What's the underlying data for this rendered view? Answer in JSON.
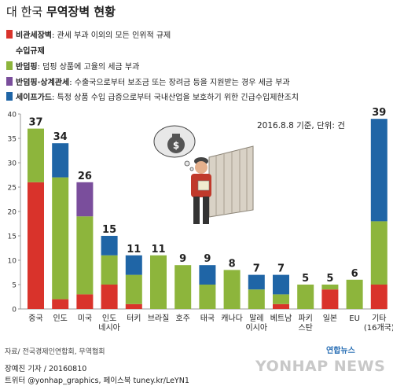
{
  "title_prefix": "대 한국 ",
  "title_main": "무역장벽 현황",
  "legend": [
    {
      "term": "비관세장벽",
      "desc": ": 관세 부과 이외의 모든 인위적 규제",
      "color": "#d9332b"
    },
    {
      "heading": "수입규제"
    },
    {
      "term": "반덤핑",
      "desc": ": 덤핑 상품에 고율의 세금 부과",
      "color": "#8db53c"
    },
    {
      "term": "반덤핑·상계관세",
      "desc": ": 수출국으로부터 보조금 또는 장려금 등을 지원받는 경우 세금 부과",
      "color": "#7a4e9c"
    },
    {
      "term": "세이프가드",
      "desc": ": 특정 상품 수입 급증으로부터 국내산업을 보호하기 위한 긴급수입제한조치",
      "color": "#1f65a6"
    }
  ],
  "note": "2016.8.8 기준, 단위: 건",
  "source": "자료/ 전국경제인연합회, 무역협회",
  "credit_line1": "장예진 기자 / 20160810",
  "credit_line2": "트위터 @yonhap_graphics, 페이스북 tuney.kr/LeYN1",
  "brand": "연합뉴스",
  "watermark": "YONHAP NEWS",
  "chart_data": {
    "type": "bar",
    "stacked": true,
    "categories": [
      "중국",
      "인도",
      "미국",
      "인도\n네시아",
      "터키",
      "브라질",
      "호주",
      "태국",
      "캐나다",
      "말레\n이시아",
      "베트남",
      "파키\n스탄",
      "일본",
      "EU",
      "기타\n(16개국)"
    ],
    "series": [
      {
        "name": "비관세장벽",
        "color": "#d9332b",
        "values": [
          26,
          2,
          3,
          5,
          1,
          0,
          0,
          0,
          0,
          0,
          1,
          0,
          4,
          0,
          5
        ]
      },
      {
        "name": "반덤핑",
        "color": "#8db53c",
        "values": [
          11,
          25,
          16,
          6,
          6,
          11,
          9,
          5,
          8,
          4,
          2,
          5,
          1,
          6,
          13
        ]
      },
      {
        "name": "반덤핑·상계관세",
        "color": "#7a4e9c",
        "values": [
          0,
          0,
          7,
          0,
          0,
          0,
          0,
          0,
          0,
          0,
          0,
          0,
          0,
          0,
          0
        ]
      },
      {
        "name": "세이프가드",
        "color": "#1f65a6",
        "values": [
          0,
          7,
          0,
          4,
          4,
          0,
          0,
          4,
          0,
          3,
          4,
          0,
          0,
          0,
          21
        ]
      }
    ],
    "totals": [
      "37",
      "34",
      "26",
      "15",
      "11",
      "11",
      "9",
      "9",
      "8",
      "7",
      "7",
      "5",
      "5",
      "6",
      "39"
    ],
    "yticks": [
      "0",
      "5",
      "10",
      "15",
      "20",
      "25",
      "30",
      "35",
      "40"
    ],
    "ylim": [
      0,
      40
    ],
    "grid": false
  }
}
